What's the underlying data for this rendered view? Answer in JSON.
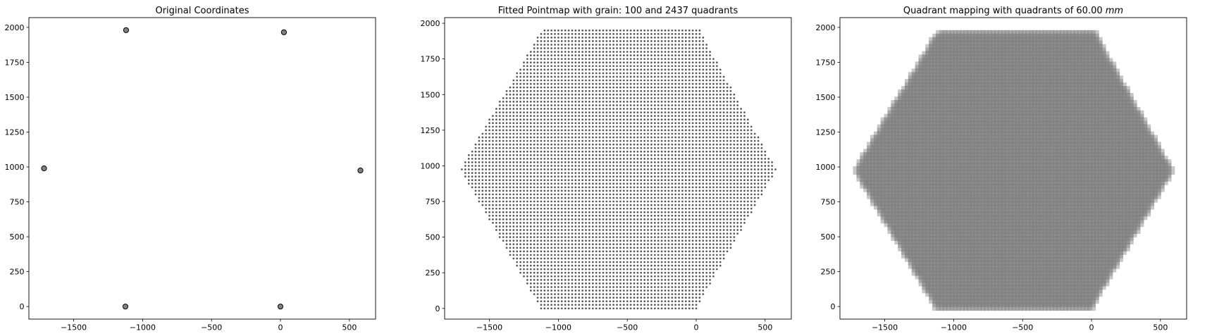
{
  "chart_data": [
    {
      "type": "scatter",
      "title": "Original Coordinates",
      "xlabel": "",
      "ylabel": "",
      "xlim": [
        -1825,
        690
      ],
      "ylim": [
        -90,
        2070
      ],
      "xticks": [
        -1500,
        -1000,
        -500,
        0,
        500
      ],
      "yticks": [
        0,
        250,
        500,
        750,
        1000,
        1250,
        1500,
        1750,
        2000
      ],
      "xtick_labels": [
        "−1500",
        "−1000",
        "−500",
        "0",
        "500"
      ],
      "ytick_labels": [
        "0",
        "250",
        "500",
        "750",
        "1000",
        "1250",
        "1500",
        "1750",
        "2000"
      ],
      "grid": false,
      "marker_color": "#808080",
      "marker_edge": "#000000",
      "series": [
        {
          "points": [
            [
              -1120,
              1980
            ],
            [
              25,
              1965
            ],
            [
              -1715,
              990
            ],
            [
              580,
              975
            ],
            [
              -1125,
              0
            ],
            [
              0,
              0
            ]
          ]
        }
      ]
    },
    {
      "type": "scatter",
      "title": "Fitted Pointmap with grain: 100 and 2437 quadrants",
      "xlabel": "",
      "ylabel": "",
      "xlim": [
        -1825,
        690
      ],
      "ylim": [
        -75,
        2040
      ],
      "xticks": [
        -1500,
        -1000,
        -500,
        0,
        500
      ],
      "yticks": [
        0,
        250,
        500,
        750,
        1000,
        1250,
        1500,
        1750,
        2000
      ],
      "xtick_labels": [
        "−1500",
        "−1000",
        "−500",
        "0",
        "500"
      ],
      "ytick_labels": [
        "0",
        "250",
        "500",
        "750",
        "1000",
        "1250",
        "1500",
        "1750",
        "2000"
      ],
      "grid": false,
      "marker_color": "#555555",
      "grid_points": {
        "spacing": 25,
        "row_bounds": [
          [
            0,
            -1125,
            0
          ],
          [
            975,
            -1715,
            580
          ],
          [
            1950,
            -1120,
            25
          ]
        ]
      }
    },
    {
      "type": "heatmap",
      "title": "Quadrant mapping with quadrants of 60.00 mm",
      "title_prefix": "Quadrant mapping with quadrants of 60.00 ",
      "title_unit": "mm",
      "xlabel": "",
      "ylabel": "",
      "xlim": [
        -1825,
        690
      ],
      "ylim": [
        -90,
        2070
      ],
      "xticks": [
        -1500,
        -1000,
        -500,
        0,
        500
      ],
      "yticks": [
        0,
        250,
        500,
        750,
        1000,
        1250,
        1500,
        1750,
        2000
      ],
      "xtick_labels": [
        "−1500",
        "−1000",
        "−500",
        "0",
        "500"
      ],
      "ytick_labels": [
        "0",
        "250",
        "500",
        "750",
        "1000",
        "1250",
        "1500",
        "1750",
        "2000"
      ],
      "grid": false,
      "cell_color": "#808080",
      "cell_opacity": 0.45,
      "quadrant_size": 60,
      "grid_points": {
        "spacing": 25,
        "row_bounds": [
          [
            0,
            -1125,
            0
          ],
          [
            975,
            -1715,
            580
          ],
          [
            1950,
            -1120,
            25
          ]
        ]
      }
    }
  ]
}
